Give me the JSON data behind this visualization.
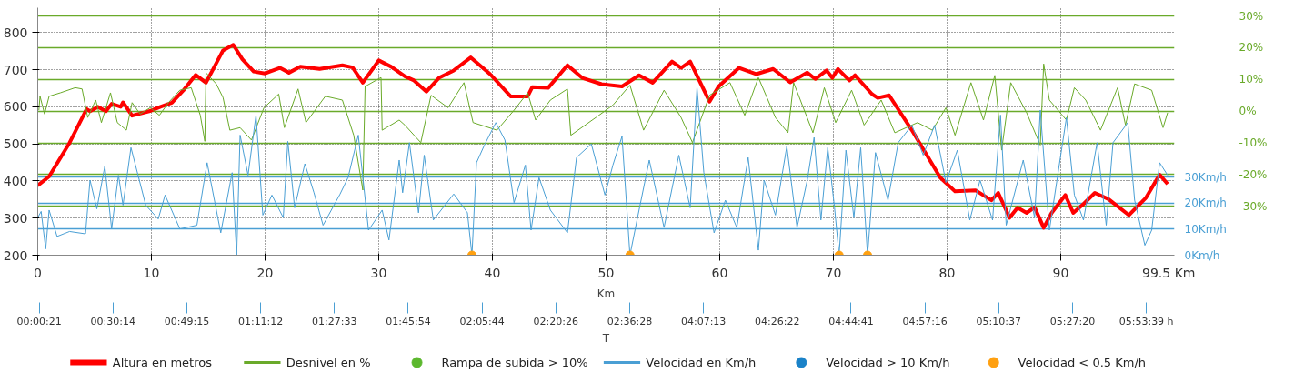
{
  "chart_data": {
    "type": "line",
    "xlabel": "Km",
    "xlim": [
      0,
      100
    ],
    "xticks": [
      0,
      10,
      20,
      30,
      40,
      50,
      60,
      70,
      80,
      90,
      {
        "value": 99.5,
        "label": "99.5 Km"
      }
    ],
    "ylim": [
      200,
      867
    ],
    "yticks": [
      200,
      300,
      400,
      500,
      600,
      700,
      800
    ],
    "y2lim": [
      -45.4,
      32.6
    ],
    "y2ticks": [
      {
        "value": 30,
        "label": "30%"
      },
      {
        "value": 20,
        "label": "20%"
      },
      {
        "value": 10,
        "label": "10%"
      },
      {
        "value": 0,
        "label": "0%"
      },
      {
        "value": -10,
        "label": "-10%"
      },
      {
        "value": -20,
        "label": "-20%"
      },
      {
        "value": -30,
        "label": "-30%"
      }
    ],
    "y3lim": [
      0,
      95
    ],
    "y3ticks": [
      {
        "value": 0,
        "label": "0Km/h"
      },
      {
        "value": 10,
        "label": "10Km/h"
      },
      {
        "value": 20,
        "label": "20Km/h"
      },
      {
        "value": 30,
        "label": "30Km/h"
      }
    ],
    "grid": true,
    "legend": "bottom",
    "marker": "none",
    "line_style": "solid",
    "x2label": "T",
    "annotations": [
      "00:00:21",
      "00:30:14",
      "00:49:15",
      "01:11:12",
      "01:27:33",
      "01:45:54",
      "02:05:44",
      "02:20:26",
      "02:36:28",
      "04:07:13",
      "04:26:22",
      "04:44:41",
      "04:57:16",
      "05:10:37",
      "05:27:20",
      "05:53:39 h"
    ],
    "series": [
      {
        "name": "Altura en metros",
        "axis": "y",
        "color": "#ff0000",
        "x": [
          0,
          1.0,
          2.8,
          4.3,
          4.6,
          5.3,
          6.0,
          6.5,
          7.3,
          7.5,
          8.3,
          9.8,
          10.8,
          11.8,
          12.8,
          13.9,
          14.8,
          16.3,
          17.2,
          18.0,
          19.0,
          20.0,
          21.3,
          22.1,
          23.1,
          24.8,
          26.8,
          27.7,
          28.6,
          30.0,
          31.1,
          32.3,
          33.1,
          34.2,
          35.3,
          36.6,
          38.1,
          39.8,
          41.6,
          43.1,
          43.5,
          44.9,
          46.6,
          47.9,
          49.6,
          51.4,
          52.9,
          54.1,
          55.8,
          56.6,
          57.4,
          59.1,
          59.9,
          61.7,
          63.2,
          64.7,
          66.2,
          67.7,
          68.4,
          69.4,
          69.9,
          70.4,
          71.4,
          71.9,
          73.4,
          73.9,
          74.9,
          76.9,
          79.4,
          80.7,
          82.5,
          83.9,
          84.5,
          85.5,
          86.2,
          87.0,
          87.7,
          88.5,
          89.2,
          90.4,
          91.1,
          92.0,
          93.0,
          94.2,
          96.0,
          97.5,
          98.7,
          99.4
        ],
        "values": [
          388,
          412,
          503,
          594,
          588,
          600,
          588,
          608,
          600,
          612,
          576,
          588,
          600,
          611,
          644,
          686,
          665,
          752,
          767,
          728,
          695,
          690,
          705,
          692,
          708,
          702,
          712,
          706,
          665,
          725,
          708,
          682,
          671,
          641,
          678,
          698,
          733,
          688,
          628,
          628,
          653,
          651,
          712,
          678,
          661,
          655,
          685,
          665,
          722,
          705,
          722,
          614,
          655,
          705,
          688,
          702,
          666,
          692,
          675,
          698,
          678,
          702,
          671,
          685,
          634,
          624,
          631,
          537,
          409,
          372,
          375,
          348,
          368,
          301,
          328,
          314,
          329,
          274,
          314,
          362,
          314,
          338,
          368,
          351,
          308,
          355,
          417,
          392
        ]
      },
      {
        "name": "Desnivel en %",
        "axis": "y2",
        "color": "#6aaa2a",
        "x": [
          0.1,
          0.2,
          0.6,
          1.0,
          2.0,
          3.3,
          3.9,
          4.4,
          5.1,
          5.6,
          6.4,
          7.0,
          7.8,
          8.3,
          9.0,
          9.9,
          10.7,
          11.5,
          12.5,
          13.5,
          14.3,
          14.7,
          14.8,
          15.7,
          16.3,
          16.9,
          17.8,
          18.8,
          19.9,
          21.2,
          21.7,
          22.9,
          23.6,
          25.3,
          26.8,
          27.8,
          28.6,
          28.8,
          30.2,
          30.3,
          31.8,
          32.3,
          33.7,
          34.6,
          36.1,
          37.5,
          38.3,
          40.4,
          41.9,
          43.1,
          43.8,
          45.1,
          46.6,
          46.9,
          49.1,
          50.6,
          52.1,
          53.3,
          55.1,
          56.6,
          57.6,
          59.1,
          60.9,
          62.2,
          63.4,
          64.9,
          66.0,
          66.5,
          68.2,
          69.2,
          70.2,
          71.6,
          72.7,
          74.2,
          75.4,
          77.4,
          78.7,
          79.9,
          80.7,
          82.1,
          83.2,
          84.2,
          84.8,
          85.6,
          87.0,
          88.2,
          88.5,
          89.0,
          90.5,
          91.2,
          92.2,
          93.5,
          95.0,
          95.7,
          96.5,
          98.0,
          99.0,
          99.4
        ],
        "values": [
          0.3,
          4.7,
          -0.9,
          4.7,
          5.8,
          7.4,
          7.0,
          -2.0,
          3.5,
          -3.6,
          5.8,
          -3.6,
          -6.0,
          2.7,
          -0.9,
          1.1,
          -1.3,
          2.7,
          6.6,
          7.4,
          -1.3,
          -9.5,
          12.1,
          8.6,
          4.3,
          -6.0,
          -5.2,
          -9.1,
          1.1,
          5.4,
          -5.2,
          7.0,
          -3.6,
          4.7,
          3.5,
          -7.6,
          -24.9,
          7.8,
          10.6,
          -6.0,
          -2.8,
          -4.4,
          -9.9,
          5.0,
          1.1,
          9.0,
          -3.6,
          -6.0,
          0.3,
          5.8,
          -2.8,
          3.5,
          7.0,
          -7.6,
          -2.0,
          1.9,
          8.2,
          -6.0,
          6.6,
          -2.0,
          -9.9,
          5.0,
          9.0,
          -1.3,
          10.6,
          -2.0,
          -6.8,
          9.0,
          -6.8,
          7.4,
          -3.6,
          6.6,
          -4.4,
          3.5,
          -6.8,
          -3.6,
          -6.0,
          1.1,
          -7.6,
          9.0,
          -2.8,
          11.3,
          -12.3,
          9.0,
          -0.5,
          -10.7,
          14.9,
          3.5,
          -2.8,
          7.4,
          3.5,
          -6.0,
          7.4,
          -4.4,
          8.6,
          6.6,
          -5.2,
          -0.5
        ]
      },
      {
        "name": "Rampa de subida > 10%",
        "type": "scatter",
        "axis": "y2",
        "color": "#5cb82e",
        "marker": "circle"
      },
      {
        "name": "Velocidad en Km/h",
        "axis": "y3",
        "color": "#4a9fd4",
        "x": [
          0,
          0.3,
          0.7,
          1.0,
          1.7,
          2.8,
          4.2,
          4.6,
          5.2,
          5.9,
          6.5,
          7.1,
          7.5,
          8.2,
          9.5,
          10.6,
          11.2,
          12.5,
          14.0,
          14.9,
          16.1,
          17.1,
          17.5,
          17.8,
          18.5,
          19.2,
          19.8,
          20.6,
          21.6,
          22.0,
          22.6,
          23.5,
          24.3,
          25.1,
          26.6,
          27.3,
          28.2,
          29.1,
          30.3,
          30.9,
          31.8,
          32.1,
          32.7,
          33.5,
          34.0,
          34.8,
          36.6,
          37.8,
          38.2,
          38.6,
          39.3,
          40.3,
          41.1,
          41.9,
          42.9,
          43.4,
          44.1,
          45.1,
          46.6,
          47.4,
          48.7,
          49.9,
          50.6,
          51.4,
          52.1,
          52.9,
          53.8,
          55.1,
          56.4,
          57.4,
          58.0,
          58.6,
          59.5,
          60.5,
          61.5,
          62.5,
          63.4,
          63.9,
          64.9,
          65.9,
          66.8,
          67.7,
          68.3,
          68.9,
          69.5,
          70.1,
          70.5,
          71.1,
          71.8,
          72.4,
          73.0,
          73.7,
          74.8,
          75.7,
          76.9,
          77.9,
          78.9,
          79.9,
          80.9,
          82.0,
          82.9,
          84.0,
          84.7,
          85.2,
          86.7,
          87.7,
          88.2,
          89.0,
          90.5,
          91.2,
          92.0,
          93.2,
          94.0,
          94.6,
          95.9,
          96.5,
          97.4,
          98.0,
          98.7,
          99.4
        ],
        "values": [
          14.4,
          16.8,
          2.4,
          17.3,
          7.2,
          9.1,
          8.2,
          28.8,
          17.8,
          34.1,
          10.1,
          30.7,
          19.2,
          41.3,
          19.2,
          13.9,
          23.1,
          10.1,
          11.5,
          35.5,
          8.6,
          31.7,
          0,
          46.1,
          30.7,
          53.8,
          15.4,
          23.1,
          14.4,
          43.7,
          18.2,
          35.1,
          24.0,
          11.5,
          23.5,
          29.8,
          46.1,
          9.6,
          17.3,
          5.8,
          36.5,
          24.0,
          43.2,
          16.3,
          38.4,
          13.5,
          23.5,
          16.3,
          0,
          35.5,
          42.3,
          50.9,
          44.2,
          20.2,
          34.6,
          9.6,
          29.8,
          17.3,
          8.6,
          37.5,
          42.7,
          23.1,
          34.6,
          45.6,
          0,
          17.3,
          36.5,
          10.6,
          38.4,
          18.2,
          64.4,
          31.7,
          8.6,
          21.1,
          10.6,
          37.5,
          1.9,
          28.8,
          15.4,
          41.8,
          10.6,
          28.8,
          45.2,
          13.5,
          41.3,
          18.2,
          0,
          40.3,
          14.4,
          41.3,
          0,
          39.4,
          21.1,
          43.2,
          49.9,
          38.4,
          49.9,
          27.9,
          40.3,
          13.5,
          28.8,
          13.5,
          53.8,
          11.5,
          36.5,
          14.4,
          55.7,
          9.6,
          52.8,
          23.1,
          13.5,
          43.2,
          11.5,
          43.2,
          50.9,
          21.1,
          3.8,
          9.6,
          35.5,
          30.7
        ]
      },
      {
        "name": "Velocidad > 10 Km/h",
        "type": "scatter",
        "axis": "y3",
        "color": "#1a82c8",
        "marker": "circle"
      },
      {
        "name": "Velocidad < 0.5 Km/h",
        "type": "scatter",
        "axis": "y3",
        "color": "#ffa010",
        "marker": "circle",
        "x": [
          38.2,
          52.1,
          70.5,
          73.0
        ],
        "values": [
          0,
          0,
          0,
          0
        ]
      }
    ]
  }
}
